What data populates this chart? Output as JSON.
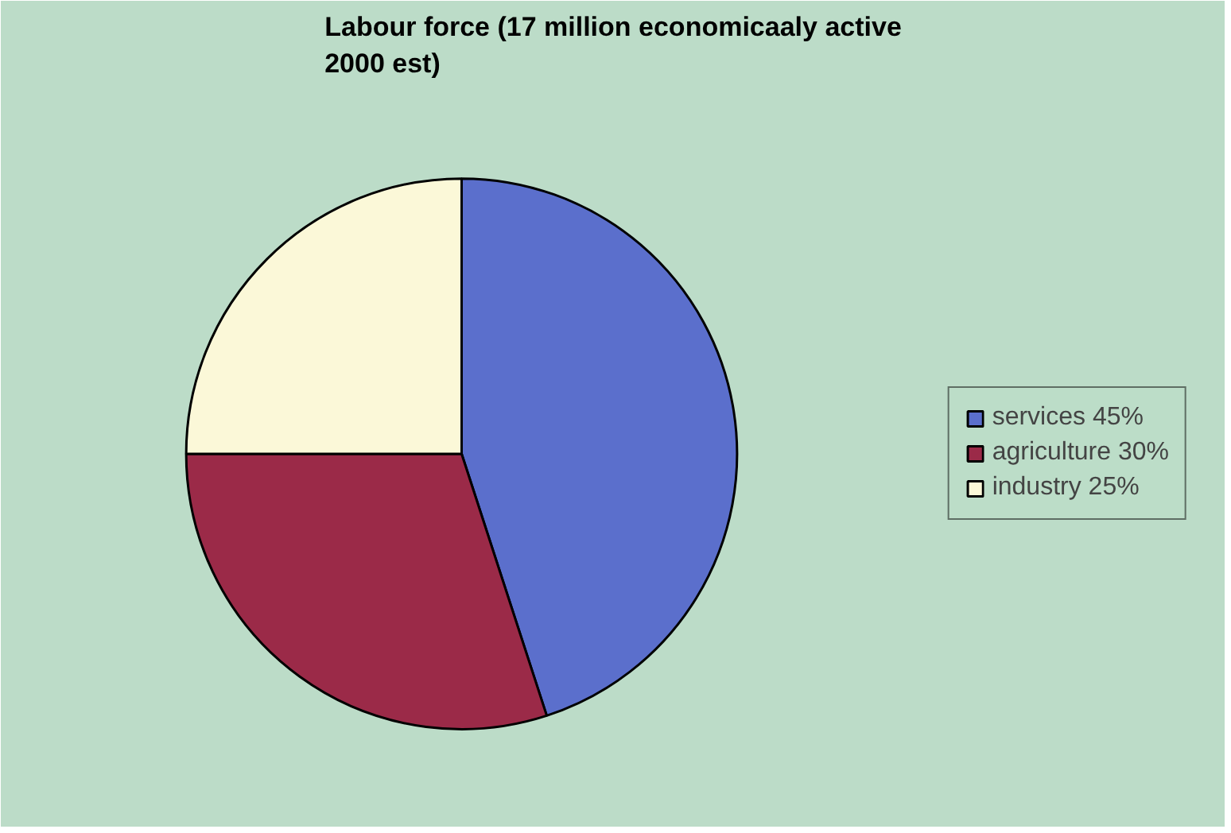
{
  "chart_data": {
    "type": "pie",
    "title": "Labour force (17 million economicaaly active\n2000 est)",
    "categories": [
      "services 45%",
      "agriculture 30%",
      "industry 25%"
    ],
    "values": [
      45,
      30,
      25
    ],
    "colors": [
      "#5b6fcc",
      "#9b2a48",
      "#fbf8d8"
    ],
    "legend": "right"
  }
}
